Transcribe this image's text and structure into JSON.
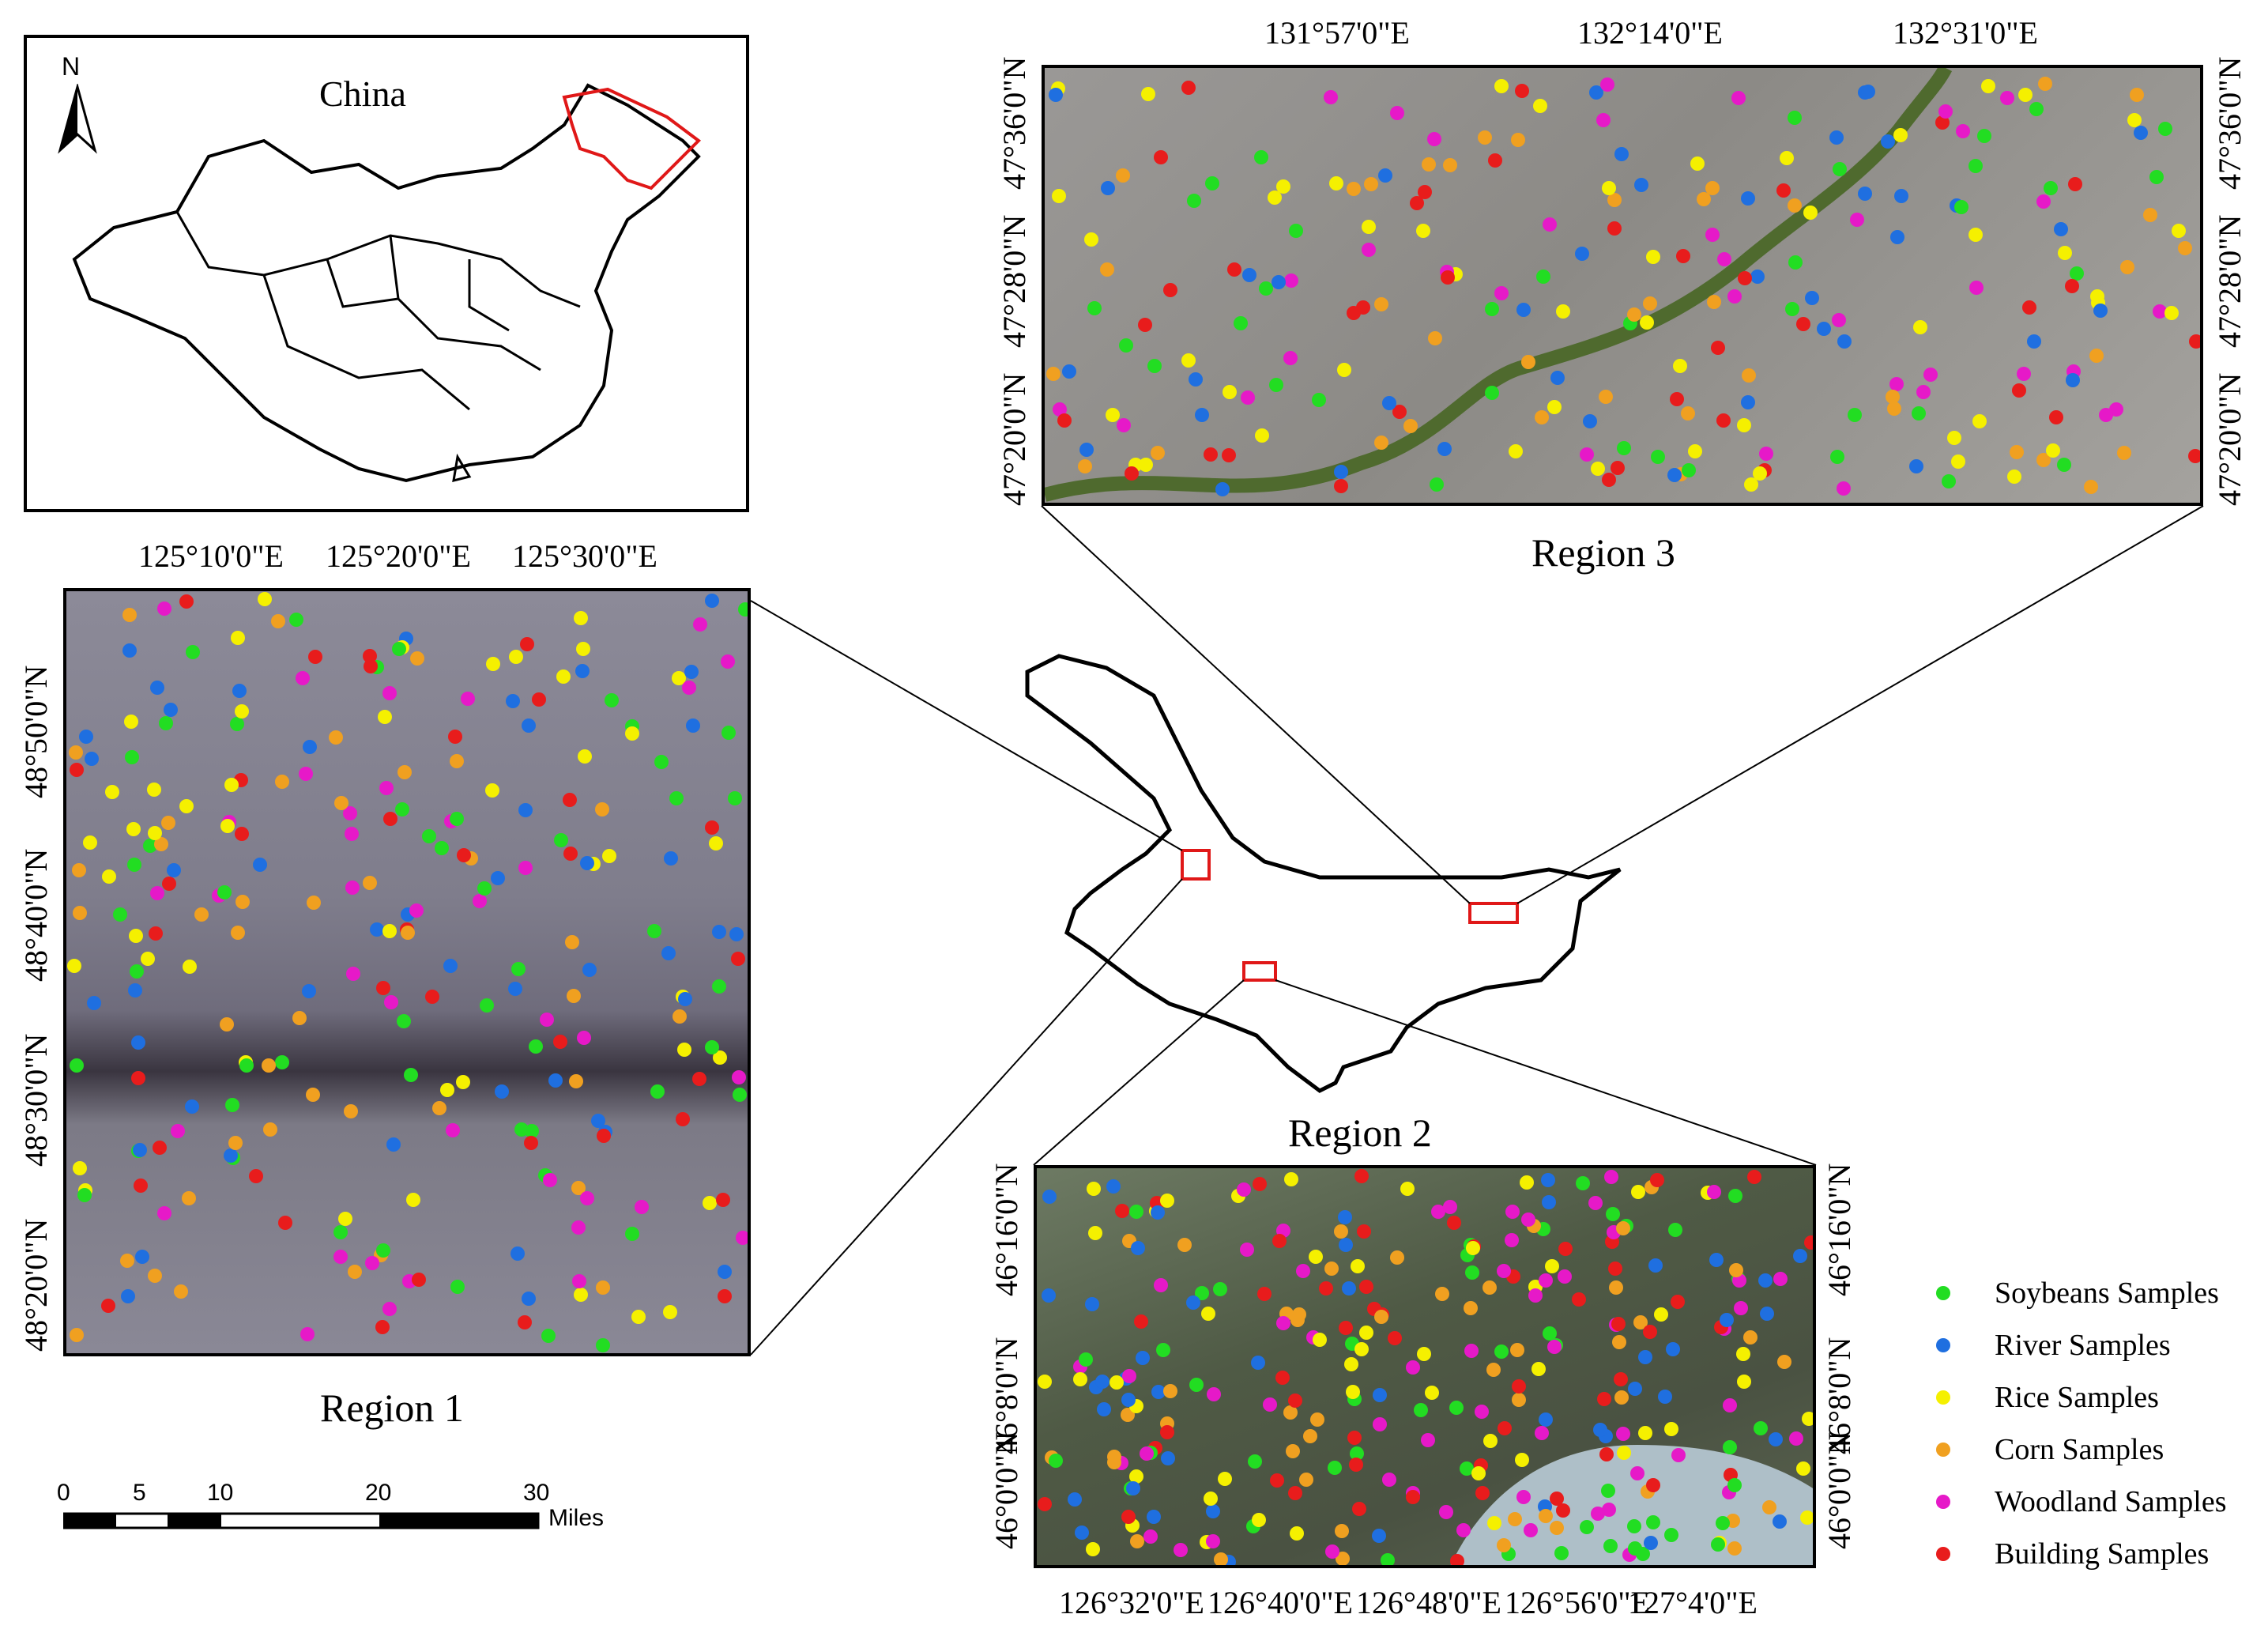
{
  "inset_china": {
    "label": "China",
    "north_arrow": "N"
  },
  "region1": {
    "title": "Region 1",
    "top_ticks": [
      "125°10'0\"E",
      "125°20'0\"E",
      "125°30'0\"E"
    ],
    "left_ticks": [
      "48°50'0\"N",
      "48°40'0\"N",
      "48°30'0\"N",
      "48°20'0\"N"
    ]
  },
  "region2": {
    "title": "Region 2",
    "bottom_ticks": [
      "126°32'0\"E",
      "126°40'0\"E",
      "126°48'0\"E",
      "126°56'0\"E",
      "127°4'0\"E"
    ],
    "left_ticks": [
      "46°16'0\"N",
      "46°8'0\"N",
      "46°0'0\"N"
    ],
    "right_ticks": [
      "46°16'0\"N",
      "46°8'0\"N",
      "46°0'0\"N"
    ]
  },
  "region3": {
    "title": "Region 3",
    "top_ticks": [
      "131°57'0\"E",
      "132°14'0\"E",
      "132°31'0\"E"
    ],
    "left_ticks": [
      "47°36'0\"N",
      "47°28'0\"N",
      "47°20'0\"N"
    ],
    "right_ticks": [
      "47°36'0\"N",
      "47°28'0\"N",
      "47°20'0\"N"
    ]
  },
  "scale_bar": {
    "ticks": [
      "0",
      "5",
      "10",
      "20",
      "30"
    ],
    "unit": "Miles"
  },
  "legend": [
    {
      "label": "Soybeans Samples",
      "color": "#22dd22"
    },
    {
      "label": "River Samples",
      "color": "#1f6fe0"
    },
    {
      "label": "Rice Samples",
      "color": "#f5f000"
    },
    {
      "label": "Corn Samples",
      "color": "#f0a020"
    },
    {
      "label": "Woodland Samples",
      "color": "#e619c8"
    },
    {
      "label": "Building Samples",
      "color": "#e81c1c"
    }
  ]
}
